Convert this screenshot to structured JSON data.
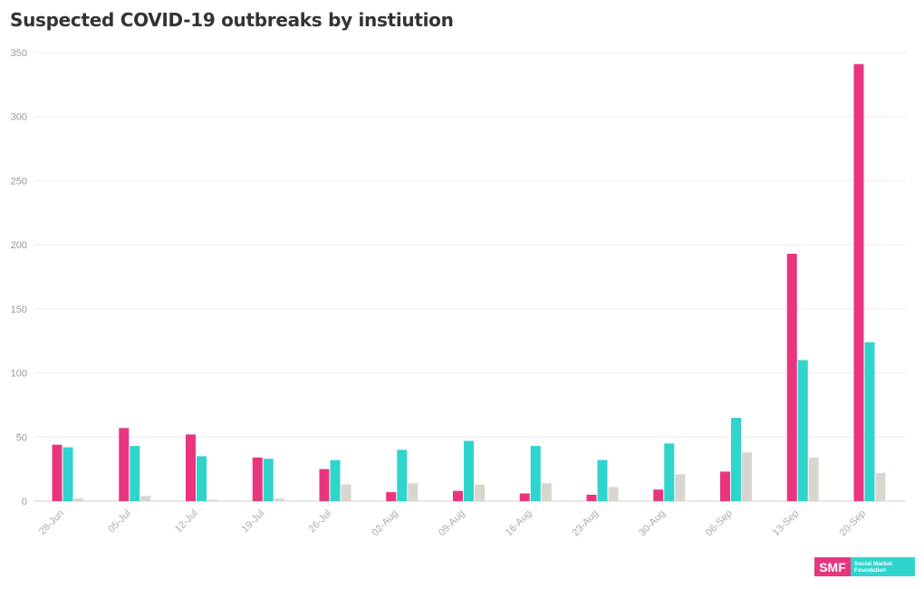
{
  "title": "Suspected COVID-19 outbreaks by instiution",
  "logo": {
    "short": "SMF",
    "line1": "Social Market",
    "line2": "Foundation",
    "colors": {
      "smf": "#e8357e",
      "name": "#2fd4cc"
    }
  },
  "chart_data": {
    "type": "bar",
    "title": "Suspected COVID-19 outbreaks by instiution",
    "xlabel": "",
    "ylabel": "",
    "ylim": [
      0,
      350
    ],
    "yticks": [
      0,
      50,
      100,
      150,
      200,
      250,
      300,
      350
    ],
    "grid": true,
    "categories": [
      "28-Jun",
      "05-Jul",
      "12-Jul",
      "19-Jul",
      "26-Jul",
      "02-Aug",
      "09-Aug",
      "16-Aug",
      "23-Aug",
      "30-Aug",
      "06-Sep",
      "13-Sep",
      "20-Sep"
    ],
    "series": [
      {
        "color": "#e8357e",
        "values": [
          44,
          57,
          52,
          34,
          25,
          7,
          8,
          6,
          5,
          9,
          23,
          193,
          341
        ]
      },
      {
        "color": "#2fd4cc",
        "values": [
          42,
          43,
          35,
          33,
          32,
          40,
          47,
          43,
          32,
          45,
          65,
          110,
          124
        ]
      },
      {
        "color": "#d9d6d0",
        "values": [
          2,
          4,
          1,
          2,
          13,
          14,
          13,
          14,
          11,
          21,
          38,
          34,
          22
        ]
      }
    ]
  }
}
